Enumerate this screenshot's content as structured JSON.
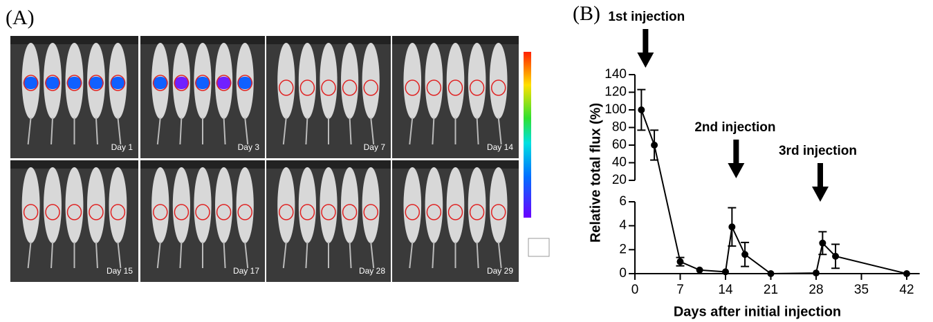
{
  "panel_a": {
    "label": "(A)",
    "days": [
      "Day 1",
      "Day 3",
      "Day 7",
      "Day 14",
      "Day 15",
      "Day 17",
      "Day 28",
      "Day 29"
    ]
  },
  "chart_data": {
    "type": "line",
    "panel_label": "(B)",
    "x_label": "Days after initial injection",
    "y_label": "Relative total flux (%)",
    "x": [
      1,
      3,
      7,
      10,
      14,
      15,
      17,
      21,
      28,
      29,
      31,
      42
    ],
    "values": [
      100,
      60,
      1.0,
      0.3,
      0.15,
      3.9,
      1.6,
      0,
      0.05,
      2.55,
      1.45,
      0
    ],
    "errors": [
      23,
      17,
      0.35,
      0,
      0,
      1.6,
      1.0,
      0,
      0,
      0.95,
      1.0,
      0
    ],
    "color": "#000000",
    "xlim": [
      0,
      44
    ],
    "xticks": [
      0,
      7,
      14,
      21,
      28,
      35,
      42
    ],
    "axis_segments": [
      {
        "ylim": [
          0,
          6
        ],
        "yticks": [
          0,
          2,
          4,
          6
        ]
      },
      {
        "ylim": [
          20,
          140
        ],
        "yticks": [
          20,
          40,
          60,
          80,
          100,
          120,
          140
        ]
      }
    ],
    "annotations": [
      {
        "text": "1st injection",
        "x": 1
      },
      {
        "text": "2nd injection",
        "x": 15
      },
      {
        "text": "3rd injection",
        "x": 28
      }
    ]
  }
}
